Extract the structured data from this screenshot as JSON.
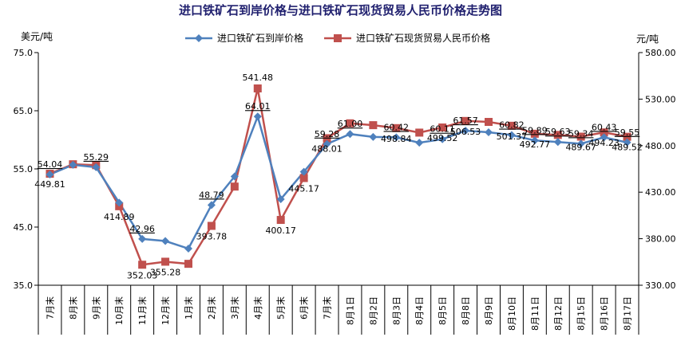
{
  "title": "进口铁矿石到岸价格与进口铁矿石现货贸易人民币价格走势图",
  "units": {
    "left": "美元/吨",
    "right": "元/吨"
  },
  "legend": [
    {
      "label": "进口铁矿石到岸价格",
      "color": "#4f81bd",
      "marker": "diamond"
    },
    {
      "label": "进口铁矿石现货贸易人民币价格",
      "color": "#c0504d",
      "marker": "square"
    }
  ],
  "chart_data": {
    "type": "line",
    "categories": [
      "7月末",
      "8月末",
      "9月末",
      "10月末",
      "11月末",
      "12月末",
      "1月末",
      "2月末",
      "3月末",
      "4月末",
      "5月末",
      "6月末",
      "7月末",
      "8月1日",
      "8月2日",
      "8月3日",
      "8月4日",
      "8月5日",
      "8月8日",
      "8月9日",
      "8月10日",
      "8月11日",
      "8月12日",
      "8月15日",
      "8月16日",
      "8月17日"
    ],
    "series": [
      {
        "name": "进口铁矿石到岸价格",
        "axis": "left",
        "color": "#4f81bd",
        "values": [
          54.04,
          55.7,
          55.29,
          49.2,
          42.96,
          42.6,
          41.3,
          48.79,
          53.7,
          64.01,
          49.8,
          54.5,
          59.28,
          61.0,
          60.5,
          60.42,
          59.5,
          60.11,
          61.57,
          61.3,
          60.82,
          59.89,
          59.63,
          59.34,
          60.43,
          59.55
        ],
        "labels": [
          "54.04",
          "",
          "55.29",
          "",
          "42.96",
          "",
          "",
          "48.79",
          "",
          "64.01",
          "",
          "",
          "59.28",
          "61.00",
          "",
          "60.42",
          "",
          "60.11",
          "61.57",
          "",
          "60.82",
          "59.89",
          "59.63",
          "59.34",
          "60.43",
          "59.55"
        ]
      },
      {
        "name": "进口铁矿石现货贸易人民币价格",
        "axis": "right",
        "color": "#c0504d",
        "values": [
          449.81,
          460,
          459,
          414.89,
          352.03,
          355.28,
          353,
          393.78,
          436,
          541.48,
          400.17,
          445.17,
          488.01,
          504,
          502,
          498.84,
          494,
          499.52,
          506.53,
          505.5,
          501.37,
          492.77,
          491.5,
          489.67,
          494.23,
          489.52
        ],
        "labels": [
          "449.81",
          "",
          "",
          "414.89",
          "352.03",
          "355.28",
          "",
          "393.78",
          "",
          "541.48",
          "400.17",
          "445.17",
          "488.01",
          "",
          "",
          "498.84",
          "",
          "499.52",
          "506.53",
          "",
          "501.37",
          "492.77",
          "",
          "489.67",
          "494.23",
          "489.52"
        ]
      }
    ],
    "y_left": {
      "min": 35,
      "max": 75,
      "ticks": [
        "35.0",
        "45.0",
        "55.0",
        "65.0",
        "75.0"
      ]
    },
    "y_right": {
      "min": 330,
      "max": 580,
      "ticks": [
        "330.00",
        "380.00",
        "430.00",
        "480.00",
        "530.00",
        "580.00"
      ]
    },
    "grid": false,
    "legend_position": "top"
  }
}
